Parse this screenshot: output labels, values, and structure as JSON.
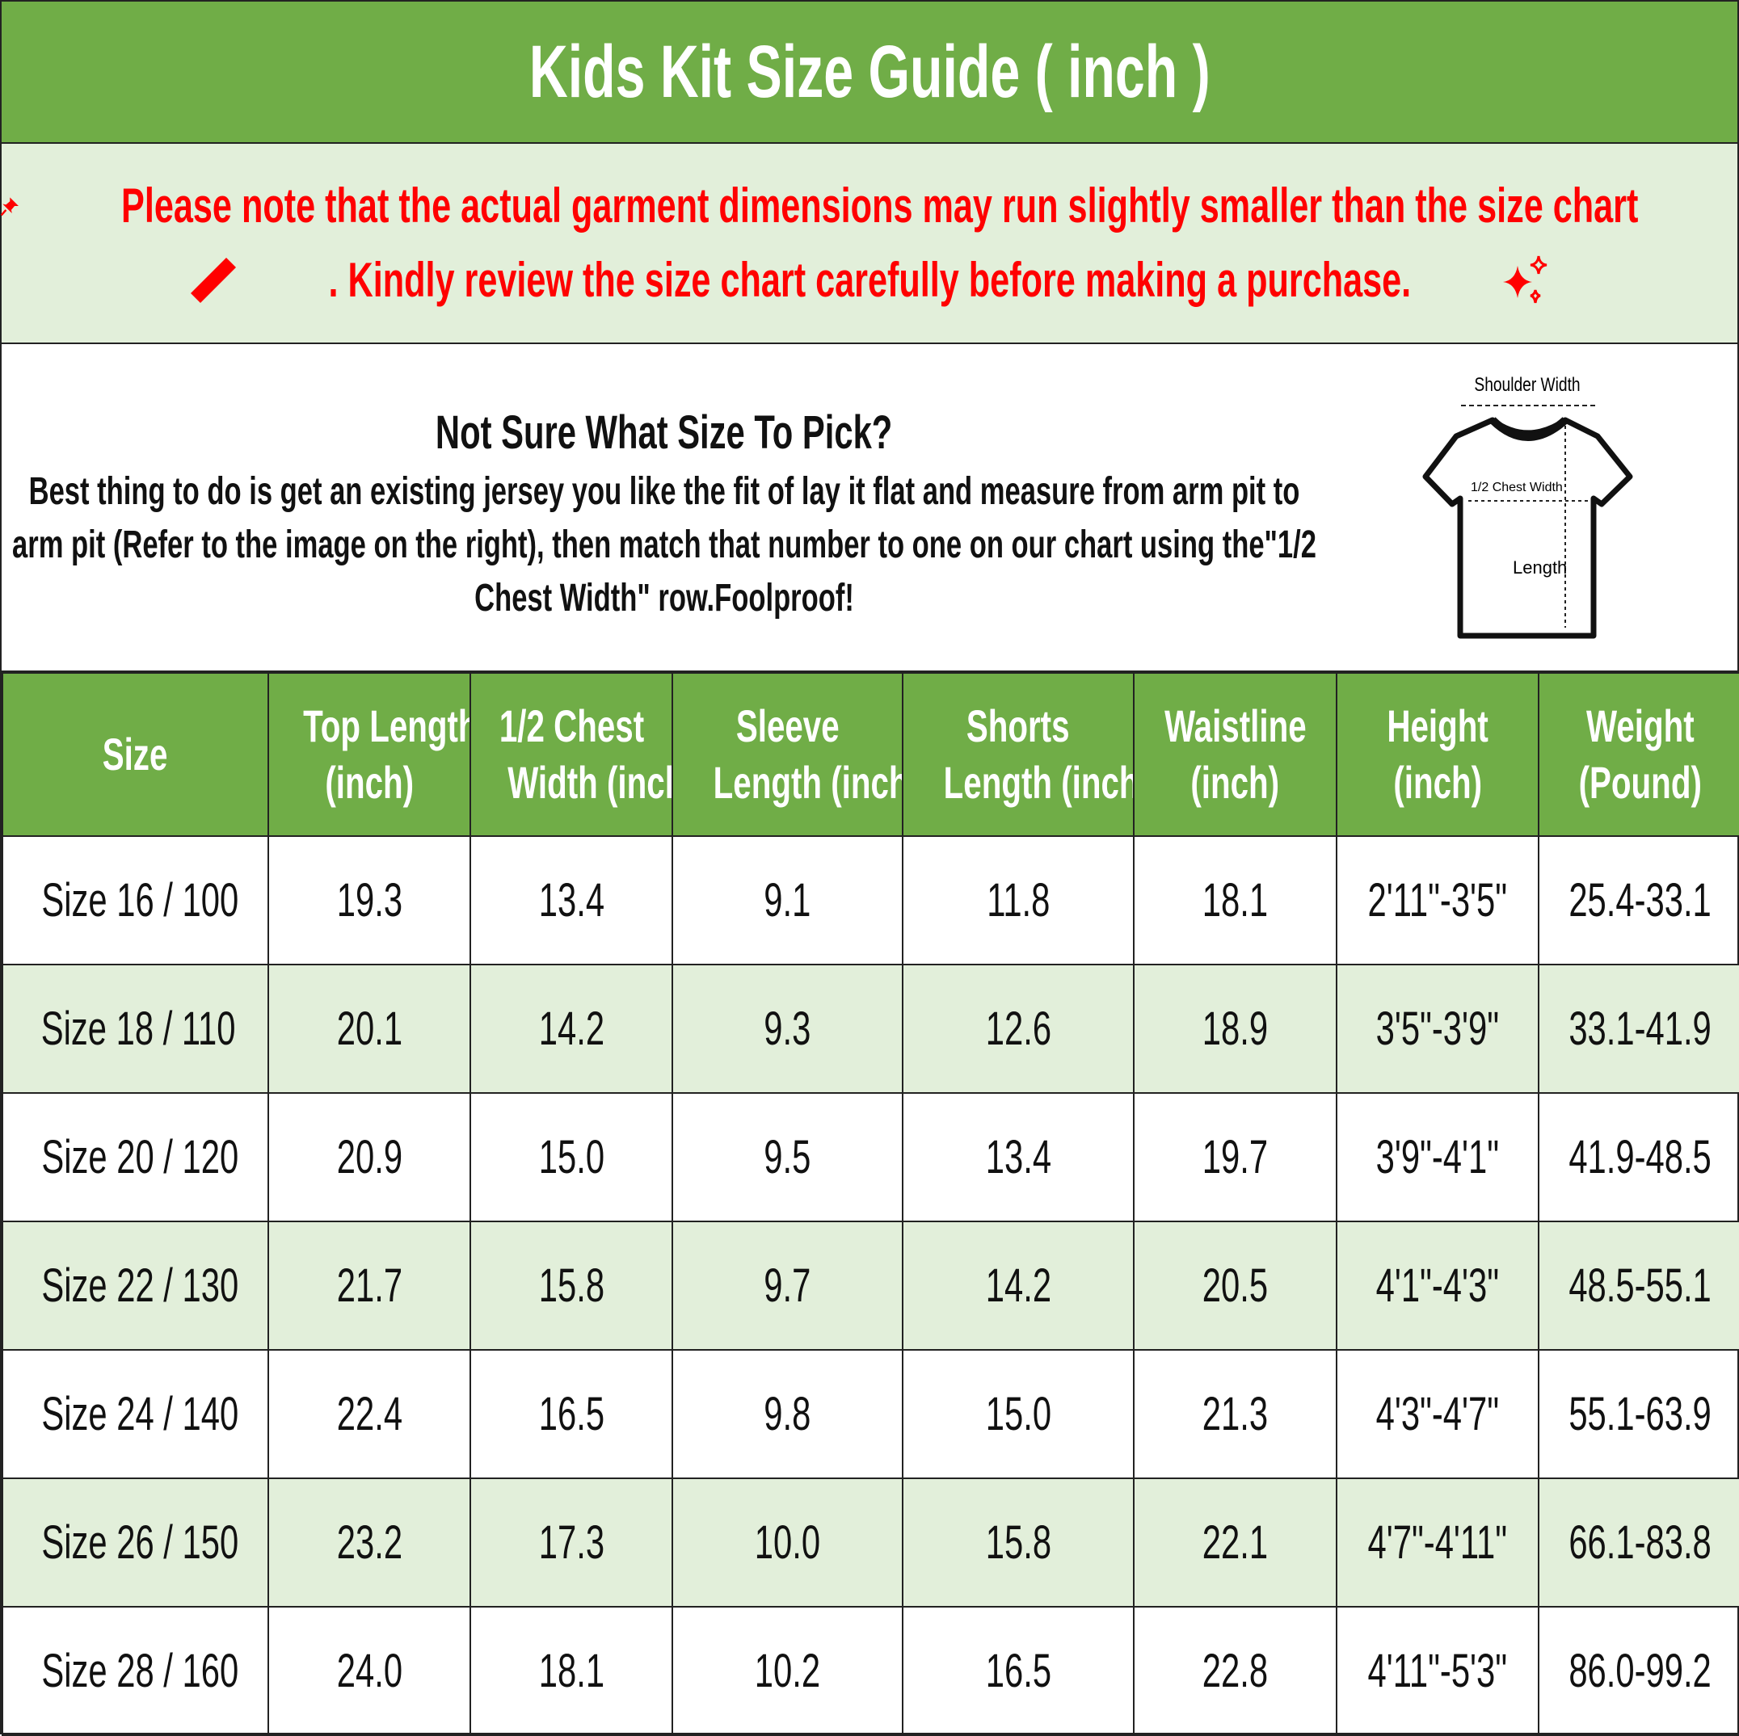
{
  "title": "Kids Kit Size Guide ( inch )",
  "note": {
    "line1": "Please note that the actual garment dimensions may run slightly smaller than the size chart",
    "line2": ". Kindly review the size chart carefully before making a purchase.",
    "icons": [
      "pushpin-icon",
      "ruler-icon",
      "sparkles-icon"
    ],
    "color": "#FF0000"
  },
  "info": {
    "heading": "Not Sure What Size To Pick?",
    "body": "Best thing to do is get an existing jersey you like the fit of lay it flat and measure from arm pit to arm pit (Refer to the image on the right), then match that number to one on our chart using the\"1/2 Chest Width\" row.Foolproof!",
    "diagram": {
      "shoulder": "Shoulder Width",
      "chest": "1/2 Chest Width",
      "length": "Length"
    }
  },
  "colors": {
    "header": "#70AD47",
    "alt_row": "#E2EFDA"
  },
  "table": {
    "headers": [
      [
        "Size",
        ""
      ],
      [
        "Top Length",
        "(inch)"
      ],
      [
        "1/2 Chest",
        "Width (inch)"
      ],
      [
        "Sleeve",
        "Length (inch)"
      ],
      [
        "Shorts",
        "Length (inch)"
      ],
      [
        "Waistline",
        "(inch)"
      ],
      [
        "Height",
        "(inch)"
      ],
      [
        "Weight",
        "(Pound)"
      ]
    ],
    "rows": [
      [
        "Size 16 / 100",
        "19.3",
        "13.4",
        "9.1",
        "11.8",
        "18.1",
        "2'11\"-3'5\"",
        "25.4-33.1"
      ],
      [
        "Size 18 / 110",
        "20.1",
        "14.2",
        "9.3",
        "12.6",
        "18.9",
        "3'5\"-3'9\"",
        "33.1-41.9"
      ],
      [
        "Size 20 / 120",
        "20.9",
        "15.0",
        "9.5",
        "13.4",
        "19.7",
        "3'9\"-4'1\"",
        "41.9-48.5"
      ],
      [
        "Size 22 / 130",
        "21.7",
        "15.8",
        "9.7",
        "14.2",
        "20.5",
        "4'1\"-4'3\"",
        "48.5-55.1"
      ],
      [
        "Size 24 / 140",
        "22.4",
        "16.5",
        "9.8",
        "15.0",
        "21.3",
        "4'3\"-4'7\"",
        "55.1-63.9"
      ],
      [
        "Size 26 / 150",
        "23.2",
        "17.3",
        "10.0",
        "15.8",
        "22.1",
        "4'7\"-4'11\"",
        "66.1-83.8"
      ],
      [
        "Size 28 / 160",
        "24.0",
        "18.1",
        "10.2",
        "16.5",
        "22.8",
        "4'11\"-5'3\"",
        "86.0-99.2"
      ]
    ]
  }
}
